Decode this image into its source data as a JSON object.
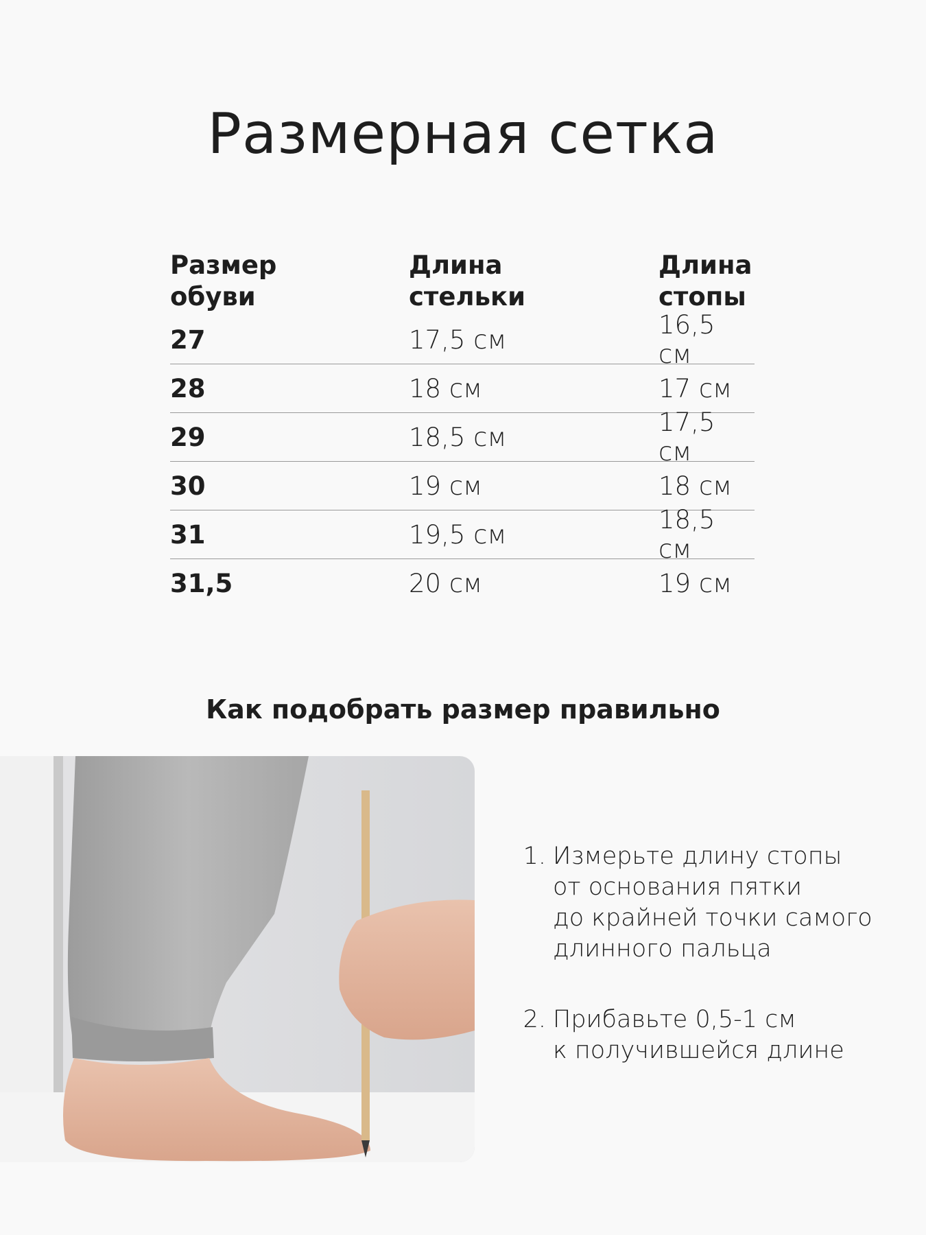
{
  "title": "Размерная сетка",
  "table": {
    "headers": [
      "Размер\nобуви",
      "Длина\nстельки",
      "Длина\nстопы"
    ],
    "header_lines": [
      [
        "Размер",
        "обуви"
      ],
      [
        "Длина",
        "стельки"
      ],
      [
        "Длина",
        "стопы"
      ]
    ],
    "rows": [
      [
        "27",
        "17,5 см",
        "16,5 см"
      ],
      [
        "28",
        "18 см",
        "17 см"
      ],
      [
        "29",
        "18,5 см",
        "17,5 см"
      ],
      [
        "30",
        "19 см",
        "18 см"
      ],
      [
        "31",
        "19,5 см",
        "18,5 см"
      ],
      [
        "31,5",
        "20 см",
        "19 см"
      ]
    ]
  },
  "subtitle": "Как подобрать размер правильно",
  "steps": [
    {
      "number": "1.",
      "text": "Измерьте длину стопы\nот основания пятки\nдо крайней точки самого\nдлинного пальца"
    },
    {
      "number": "2.",
      "text": "Прибавьте 0,5-1 см\nк получившейся длине"
    }
  ]
}
